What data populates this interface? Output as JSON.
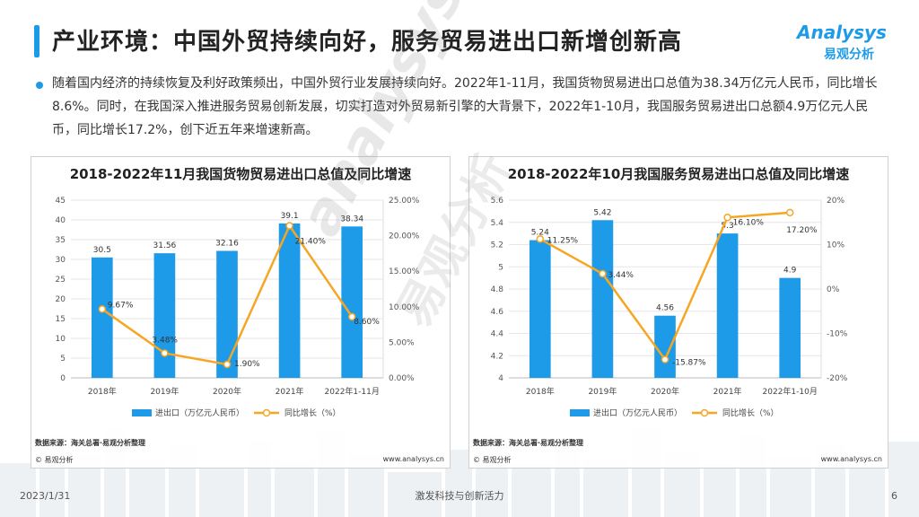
{
  "header": {
    "title": "产业环境：中国外贸持续向好，服务贸易进出口新增创新高",
    "logo_text": "Analysys",
    "logo_cn": "易观分析"
  },
  "intro": "随着国内经济的持续恢复及利好政策频出，中国外贸行业发展持续向好。2022年1-11月，我国货物贸易进出口总值为38.34万亿元人民币，同比增长8.6%。同时，在我国深入推进服务贸易创新发展，切实打造对外贸易新引擎的大背景下，2022年1-10月，我国服务贸易进出口总额4.9万亿元人民币，同比增长17.2%，创下近五年来增速新高。",
  "colors": {
    "accent": "#1e9be8",
    "bar": "#1e9be8",
    "line": "#f5a623"
  },
  "watermark": {
    "logo": "analysys",
    "cn": "易观分析"
  },
  "chart_data": [
    {
      "type": "bar",
      "title": "2018-2022年11月我国货物贸易进出口总值及同比增速",
      "categories": [
        "2018年",
        "2019年",
        "2020年",
        "2021年",
        "2022年1-11月"
      ],
      "series": [
        {
          "name": "进出口（万亿元人民币）",
          "type": "bar",
          "axis": "left",
          "values": [
            30.5,
            31.56,
            32.16,
            39.1,
            38.34
          ],
          "labels": [
            "30.5",
            "31.56",
            "32.16",
            "39.1",
            "38.34"
          ]
        },
        {
          "name": "同比增长（%）",
          "type": "line",
          "axis": "right",
          "values": [
            9.67,
            3.48,
            1.9,
            21.4,
            8.6
          ],
          "labels": [
            "9.67%",
            "3.48%",
            "1.90%",
            "21.40%",
            "8.60%"
          ]
        }
      ],
      "ylim_left": [
        0,
        45
      ],
      "yticks_left": [
        "0",
        "5",
        "10",
        "15",
        "20",
        "25",
        "30",
        "35",
        "40",
        "45"
      ],
      "ylim_right": [
        0,
        25
      ],
      "yticks_right": [
        "0.00%",
        "5.00%",
        "10.00%",
        "15.00%",
        "20.00%",
        "25.00%"
      ],
      "legend": "bottom",
      "source": "数据来源：海关总署·易观分析整理",
      "copyright": "© 易观分析",
      "site": "www.analysys.cn"
    },
    {
      "type": "bar",
      "title": "2018-2022年10月我国服务贸易进出口总值及同比增速",
      "categories": [
        "2018年",
        "2019年",
        "2020年",
        "2021年",
        "2022年1-10月"
      ],
      "series": [
        {
          "name": "进出口（万亿元人民币）",
          "type": "bar",
          "axis": "left",
          "values": [
            5.24,
            5.42,
            4.56,
            5.3,
            4.9
          ],
          "labels": [
            "5.24",
            "5.42",
            "4.56",
            "5.3",
            "4.9"
          ]
        },
        {
          "name": "同比增长（%）",
          "type": "line",
          "axis": "right",
          "values": [
            11.25,
            3.44,
            -15.87,
            16.1,
            17.2
          ],
          "labels": [
            "11.25%",
            "3.44%",
            "-15.87%",
            "16.10%",
            "17.20%"
          ]
        }
      ],
      "ylim_left": [
        4,
        5.6
      ],
      "yticks_left": [
        "4",
        "4.2",
        "4.4",
        "4.6",
        "4.8",
        "5",
        "5.2",
        "5.4",
        "5.6"
      ],
      "ylim_right": [
        -20,
        20
      ],
      "yticks_right": [
        "-20%",
        "-10%",
        "0%",
        "10%",
        "20%"
      ],
      "legend": "bottom",
      "source": "数据来源：海关总署·易观分析整理",
      "copyright": "© 易观分析",
      "site": "www.analysys.cn"
    }
  ],
  "footer": {
    "date": "2023/1/31",
    "slogan": "激发科技与创新活力",
    "page": "6"
  }
}
